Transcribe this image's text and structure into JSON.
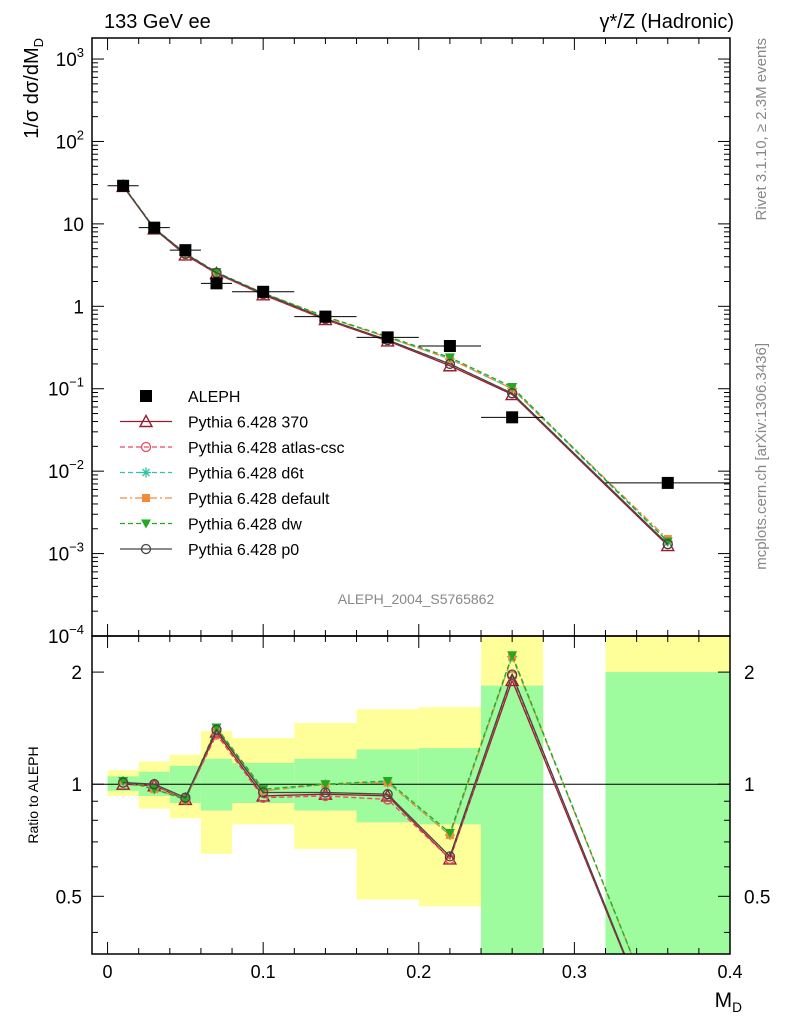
{
  "header": {
    "left": "133 GeV ee",
    "right": "γ*/Z (Hadronic)"
  },
  "side_labels": {
    "rivet": "Rivet 3.1.10, ≥ 2.3M events",
    "mcplots": "mcplots.cern.ch [arXiv:1306.3436]"
  },
  "analysis_id": "ALEPH_2004_S5765862",
  "colors": {
    "data": "#000000",
    "p370": "#9b1c31",
    "atlas": "#e84a5f",
    "d6t": "#2ec4a6",
    "default": "#f28c38",
    "dw": "#22aa22",
    "p0": "#444444",
    "band_inner": "#9efb9e",
    "band_outer": "#ffff99"
  },
  "chart_data": [
    {
      "type": "scatter",
      "panel": "main",
      "title": "",
      "ylabel": "1/σ  dσ/dM_D",
      "yscale": "log",
      "ylim": [
        0.0001,
        1800
      ],
      "xlim": [
        -0.01,
        0.4
      ],
      "ytick_labels": [
        "10⁻⁴",
        "10⁻³",
        "10⁻²",
        "10⁻¹",
        "1",
        "10",
        "10²",
        "10³"
      ],
      "x": [
        0.01,
        0.03,
        0.05,
        0.07,
        0.1,
        0.14,
        0.18,
        0.22,
        0.26,
        0.36
      ],
      "xerr": [
        0.01,
        0.01,
        0.01,
        0.01,
        0.02,
        0.02,
        0.02,
        0.02,
        0.02,
        0.04
      ],
      "legend_position": "lower-left",
      "series": [
        {
          "name": "ALEPH",
          "key": "data",
          "marker": "square",
          "values": [
            29,
            9.0,
            4.8,
            1.9,
            1.5,
            0.75,
            0.42,
            0.33,
            0.045,
            0.0072
          ]
        },
        {
          "name": "Pythia 6.428 370",
          "key": "p370",
          "marker": "triangle-open",
          "line": "solid",
          "values": [
            28.5,
            8.7,
            4.2,
            2.5,
            1.38,
            0.69,
            0.38,
            0.19,
            0.085,
            0.00125
          ]
        },
        {
          "name": "Pythia 6.428 atlas-csc",
          "key": "atlas",
          "marker": "circle-open",
          "line": "dashed",
          "values": [
            28.8,
            8.8,
            4.3,
            2.5,
            1.4,
            0.7,
            0.39,
            0.2,
            0.088,
            0.0013
          ]
        },
        {
          "name": "Pythia 6.428 d6t",
          "key": "d6t",
          "marker": "star",
          "line": "dashed",
          "values": [
            29.0,
            8.9,
            4.4,
            2.55,
            1.45,
            0.75,
            0.42,
            0.23,
            0.1,
            0.0014
          ]
        },
        {
          "name": "Pythia 6.428 default",
          "key": "default",
          "marker": "square-filled",
          "line": "dashdot",
          "values": [
            29.0,
            8.9,
            4.4,
            2.55,
            1.45,
            0.74,
            0.42,
            0.23,
            0.1,
            0.0015
          ]
        },
        {
          "name": "Pythia 6.428 dw",
          "key": "dw",
          "marker": "triangle-down-filled",
          "line": "dashed",
          "values": [
            29.2,
            8.9,
            4.4,
            2.6,
            1.45,
            0.75,
            0.43,
            0.24,
            0.105,
            0.0014
          ]
        },
        {
          "name": "Pythia 6.428 p0",
          "key": "p0",
          "marker": "circle-open",
          "line": "solid",
          "values": [
            29.0,
            8.8,
            4.35,
            2.55,
            1.42,
            0.71,
            0.39,
            0.2,
            0.088,
            0.0013
          ]
        }
      ]
    },
    {
      "type": "line",
      "panel": "ratio",
      "ylabel": "Ratio to ALEPH",
      "xlabel": "M_D",
      "yscale": "log",
      "ylim": [
        0.35,
        2.5
      ],
      "xlim": [
        -0.01,
        0.4
      ],
      "xtick_labels": [
        "0",
        "0.1",
        "0.2",
        "0.3",
        "0.4"
      ],
      "ytick_labels": [
        "0.5",
        "1",
        "2"
      ],
      "reference_line": 1,
      "bands": [
        {
          "xlo": 0.0,
          "xhi": 0.02,
          "inner": [
            0.96,
            1.05
          ],
          "outer": [
            0.93,
            1.09
          ]
        },
        {
          "xlo": 0.02,
          "xhi": 0.04,
          "inner": [
            0.93,
            1.08
          ],
          "outer": [
            0.86,
            1.15
          ]
        },
        {
          "xlo": 0.04,
          "xhi": 0.06,
          "inner": [
            0.89,
            1.12
          ],
          "outer": [
            0.81,
            1.2
          ]
        },
        {
          "xlo": 0.06,
          "xhi": 0.08,
          "inner": [
            0.85,
            1.17
          ],
          "outer": [
            0.65,
            1.39
          ]
        },
        {
          "xlo": 0.08,
          "xhi": 0.12,
          "inner": [
            0.89,
            1.14
          ],
          "outer": [
            0.78,
            1.33
          ]
        },
        {
          "xlo": 0.12,
          "xhi": 0.16,
          "inner": [
            0.85,
            1.17
          ],
          "outer": [
            0.67,
            1.46
          ]
        },
        {
          "xlo": 0.16,
          "xhi": 0.2,
          "inner": [
            0.79,
            1.24
          ],
          "outer": [
            0.49,
            1.59
          ]
        },
        {
          "xlo": 0.2,
          "xhi": 0.24,
          "inner": [
            0.78,
            1.25
          ],
          "outer": [
            0.47,
            1.61
          ]
        },
        {
          "xlo": 0.24,
          "xhi": 0.28,
          "inner": [
            0.3,
            1.84
          ],
          "outer": [
            0.3,
            3.0
          ]
        },
        {
          "xlo": 0.32,
          "xhi": 0.4,
          "inner": [
            0.3,
            2.0
          ],
          "outer": [
            0.3,
            3.0
          ]
        }
      ],
      "x": [
        0.01,
        0.03,
        0.05,
        0.07,
        0.1,
        0.14,
        0.18,
        0.22,
        0.26,
        0.36
      ],
      "series": [
        {
          "name": "Pythia 6.428 370",
          "key": "p370",
          "marker": "triangle-open",
          "line": "solid",
          "values": [
            1.0,
            0.99,
            0.91,
            1.38,
            0.93,
            0.94,
            0.93,
            0.63,
            1.9,
            0.18
          ]
        },
        {
          "name": "Pythia 6.428 atlas-csc",
          "key": "atlas",
          "marker": "circle-open",
          "line": "dashed",
          "values": [
            1.01,
            0.99,
            0.91,
            1.36,
            0.92,
            0.93,
            0.91,
            0.63,
            1.95,
            0.18
          ]
        },
        {
          "name": "Pythia 6.428 d6t",
          "key": "d6t",
          "marker": "star",
          "line": "dashed",
          "values": [
            1.02,
            0.97,
            0.91,
            1.41,
            0.96,
            1.0,
            1.01,
            0.73,
            2.2,
            0.2
          ]
        },
        {
          "name": "Pythia 6.428 default",
          "key": "default",
          "marker": "square-filled",
          "line": "dashdot",
          "values": [
            1.02,
            0.97,
            0.91,
            1.41,
            0.96,
            1.0,
            1.01,
            0.73,
            2.2,
            0.2
          ]
        },
        {
          "name": "Pythia 6.428 dw",
          "key": "dw",
          "marker": "triangle-down-filled",
          "line": "dashed",
          "values": [
            1.02,
            0.97,
            0.91,
            1.42,
            0.97,
            1.0,
            1.02,
            0.74,
            2.22,
            0.2
          ]
        },
        {
          "name": "Pythia 6.428 p0",
          "key": "p0",
          "marker": "circle-open",
          "line": "solid",
          "values": [
            1.01,
            1.0,
            0.92,
            1.4,
            0.95,
            0.95,
            0.94,
            0.64,
            1.97,
            0.18
          ]
        }
      ]
    }
  ]
}
